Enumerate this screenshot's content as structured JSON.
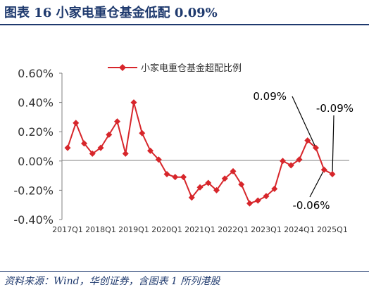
{
  "header": {
    "title": "图表 16   小家电重仓基金低配 0.09%"
  },
  "footer": {
    "source": "资料来源：Wind，华创证券，含图表 1 所列港股"
  },
  "chart_data": {
    "type": "line",
    "title": "",
    "xlabel": "",
    "ylabel": "",
    "ylim": [
      -0.4,
      0.6
    ],
    "yticks": [
      "0.60%",
      "0.40%",
      "0.20%",
      "0.00%",
      "-0.20%",
      "-0.40%"
    ],
    "ytick_values": [
      0.6,
      0.4,
      0.2,
      0.0,
      -0.2,
      -0.4
    ],
    "xticks": [
      {
        "index": 0,
        "label": "2017Q1"
      },
      {
        "index": 4,
        "label": "2018Q1"
      },
      {
        "index": 8,
        "label": "2019Q1"
      },
      {
        "index": 12,
        "label": "2020Q1"
      },
      {
        "index": 16,
        "label": "2021Q1"
      },
      {
        "index": 20,
        "label": "2022Q1"
      },
      {
        "index": 24,
        "label": "2023Q1"
      },
      {
        "index": 28,
        "label": "2024Q1"
      },
      {
        "index": 32,
        "label": "2025Q1"
      }
    ],
    "legend_position": "top",
    "grid": false,
    "series": [
      {
        "name": "小家电重仓基金超配比例",
        "color": "#d7262b",
        "values": [
          0.09,
          0.26,
          0.12,
          0.05,
          0.09,
          0.18,
          0.27,
          0.05,
          0.4,
          0.19,
          0.07,
          0.01,
          -0.09,
          -0.11,
          -0.11,
          -0.25,
          -0.18,
          -0.15,
          -0.2,
          -0.12,
          -0.07,
          -0.16,
          -0.29,
          -0.27,
          -0.24,
          -0.19,
          0.0,
          -0.03,
          0.01,
          0.14,
          0.09,
          -0.06,
          -0.09
        ]
      }
    ],
    "annotations": [
      {
        "text": "0.09%",
        "point_index": 30
      },
      {
        "text": "-0.09%",
        "point_index": 32
      },
      {
        "text": "-0.06%",
        "point_index": 31
      }
    ]
  }
}
